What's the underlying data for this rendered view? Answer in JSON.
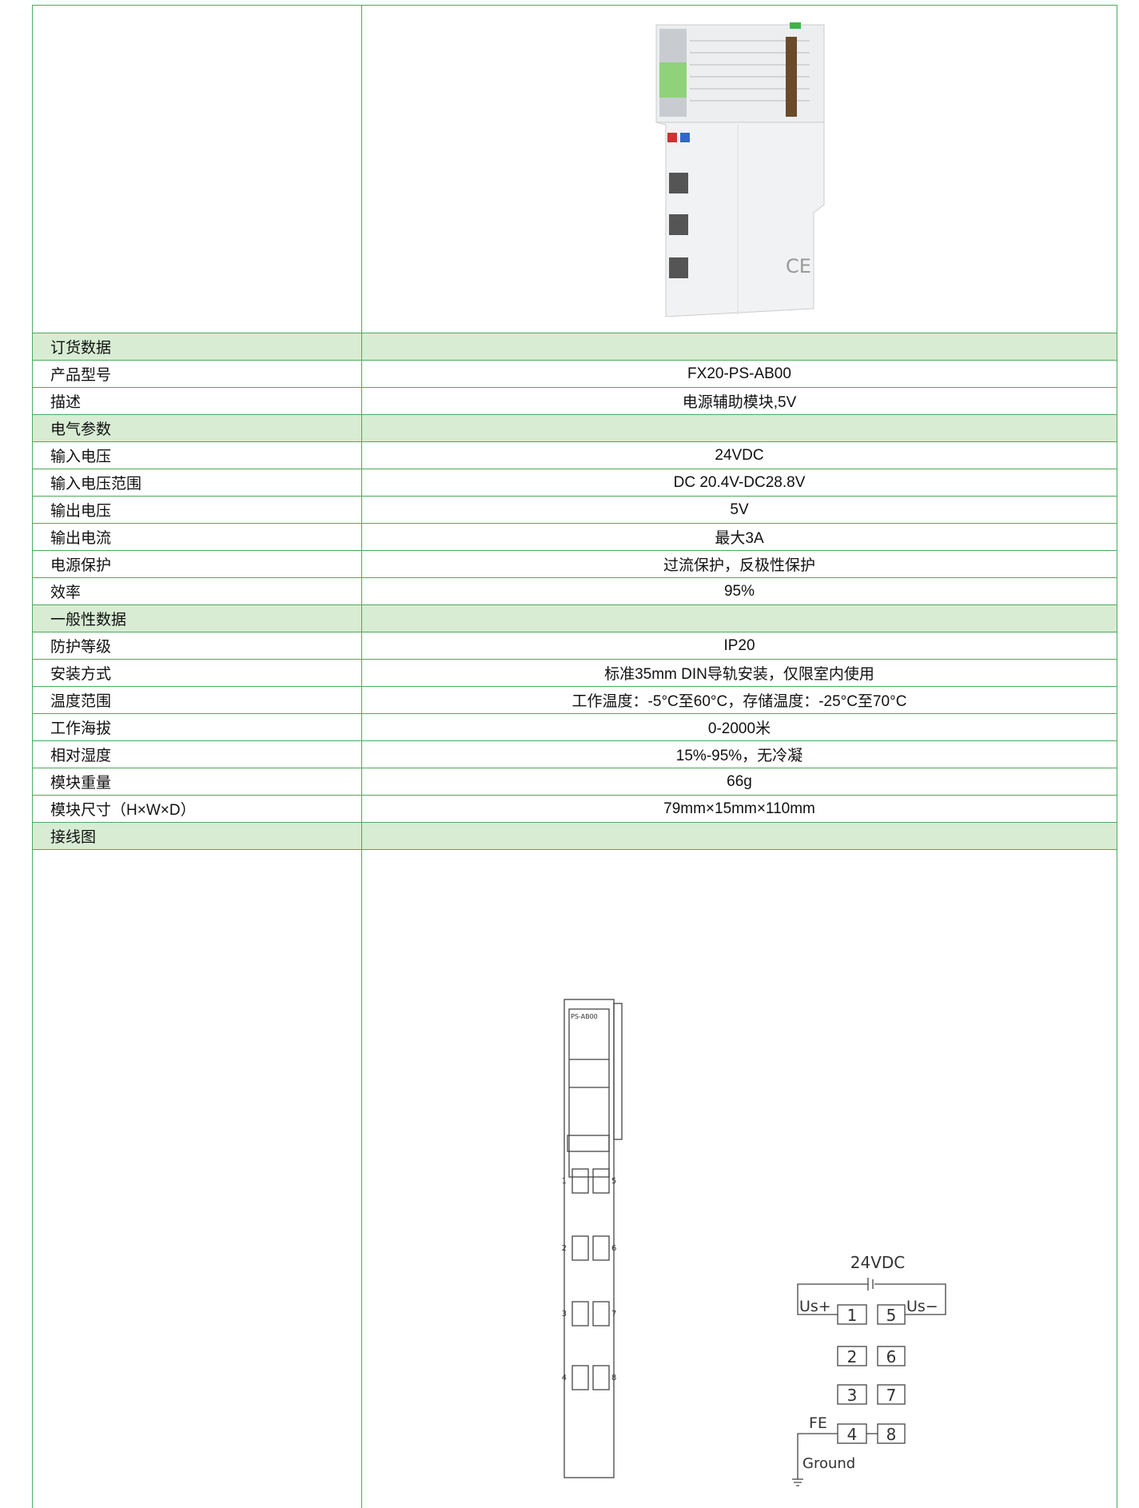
{
  "sections": [
    {
      "title": "订货数据",
      "rows": [
        {
          "label": "产品型号",
          "value": "FX20-PS-AB00"
        },
        {
          "label": "描述",
          "value": "电源辅助模块,5V"
        }
      ]
    },
    {
      "title": "电气参数",
      "rows": [
        {
          "label": "输入电压",
          "value": "24VDC"
        },
        {
          "label": "输入电压范围",
          "value": "DC 20.4V-DC28.8V"
        },
        {
          "label": "输出电压",
          "value": "5V"
        },
        {
          "label": "输出电流",
          "value": "最大3A"
        },
        {
          "label": "电源保护",
          "value": "过流保护，反极性保护"
        },
        {
          "label": "效率",
          "value": "95%"
        }
      ]
    },
    {
      "title": "一般性数据",
      "rows": [
        {
          "label": "防护等级",
          "value": "IP20"
        },
        {
          "label": "安装方式",
          "value": "标准35mm DIN导轨安装，仅限室内使用"
        },
        {
          "label": "温度范围",
          "value": "工作温度：-5°C至60°C，存储温度：-25°C至70°C"
        },
        {
          "label": "工作海拔",
          "value": "0-2000米"
        },
        {
          "label": "相对湿度",
          "value": "15%-95%，无冷凝"
        },
        {
          "label": "模块重量",
          "value": "66g"
        },
        {
          "label": "模块尺寸（H×W×D）",
          "value": "79mm×15mm×110mm"
        }
      ]
    },
    {
      "title": "接线图",
      "rows": []
    }
  ],
  "wiring": {
    "module_label": "PS-AB00",
    "terminals": [
      "1",
      "2",
      "3",
      "4",
      "5",
      "6",
      "7",
      "8"
    ],
    "supply": "24VDC",
    "us_plus": "Us+",
    "us_minus": "Us−",
    "fe": "FE",
    "ground": "Ground"
  }
}
